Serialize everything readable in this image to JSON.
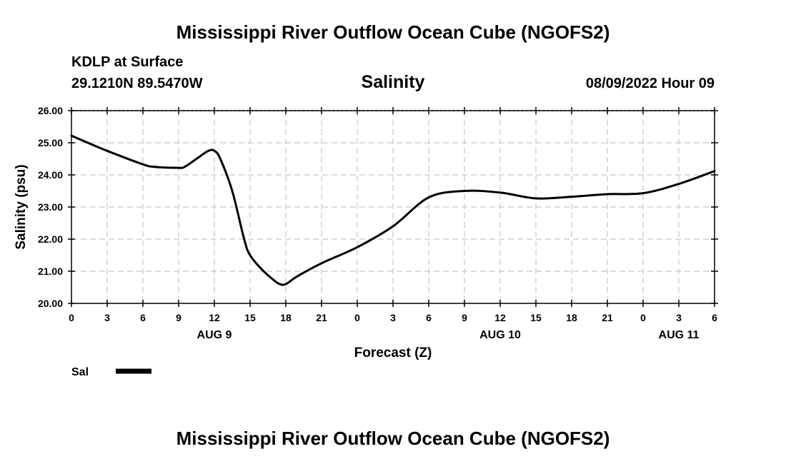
{
  "header": {
    "title": "Mississippi River Outflow Ocean Cube (NGOFS2)",
    "station": "KDLP at Surface",
    "coordinates": "29.1210N  89.5470W",
    "subtitle": "Salinity",
    "datetime": "08/09/2022 Hour 09"
  },
  "footer": {
    "title": "Mississippi River Outflow Ocean Cube (NGOFS2)"
  },
  "chart_data": {
    "type": "line",
    "title": "Salinity",
    "xlabel": "Forecast (Z)",
    "ylabel": "Salinity (psu)",
    "ylim": [
      20,
      26
    ],
    "xlim": [
      0,
      54
    ],
    "y_ticks": [
      "20.00",
      "21.00",
      "22.00",
      "23.00",
      "24.00",
      "25.00",
      "26.00"
    ],
    "y_tick_values": [
      20,
      21,
      22,
      23,
      24,
      25,
      26
    ],
    "x_tick_values": [
      0,
      3,
      6,
      9,
      12,
      15,
      18,
      21,
      24,
      27,
      30,
      33,
      36,
      39,
      42,
      45,
      48,
      51,
      54
    ],
    "x_tick_labels": [
      "0",
      "3",
      "6",
      "9",
      "12",
      "15",
      "18",
      "21",
      "0",
      "3",
      "6",
      "9",
      "12",
      "15",
      "18",
      "21",
      "0",
      "3",
      "6"
    ],
    "day_labels": [
      {
        "label": "AUG 9",
        "hour": 12
      },
      {
        "label": "AUG 10",
        "hour": 36
      },
      {
        "label": "AUG 11",
        "hour": 51
      }
    ],
    "grid": true,
    "legend": [
      {
        "label": "Sal",
        "position": "bottom-left"
      }
    ],
    "series": [
      {
        "name": "Sal",
        "x": [
          0,
          3,
          6,
          7,
          9,
          9.5,
          10.5,
          11.5,
          12,
          12.5,
          13.5,
          14.5,
          15,
          16,
          17,
          17.5,
          18,
          19,
          21,
          24,
          27,
          30,
          33,
          36,
          39,
          42,
          45,
          48,
          51,
          54
        ],
        "values": [
          25.22,
          24.75,
          24.33,
          24.25,
          24.22,
          24.25,
          24.5,
          24.75,
          24.75,
          24.5,
          23.5,
          22.0,
          21.5,
          21.05,
          20.72,
          20.6,
          20.6,
          20.85,
          21.25,
          21.75,
          22.4,
          23.3,
          23.5,
          23.45,
          23.27,
          23.32,
          23.4,
          23.43,
          23.72,
          24.12
        ]
      }
    ]
  }
}
